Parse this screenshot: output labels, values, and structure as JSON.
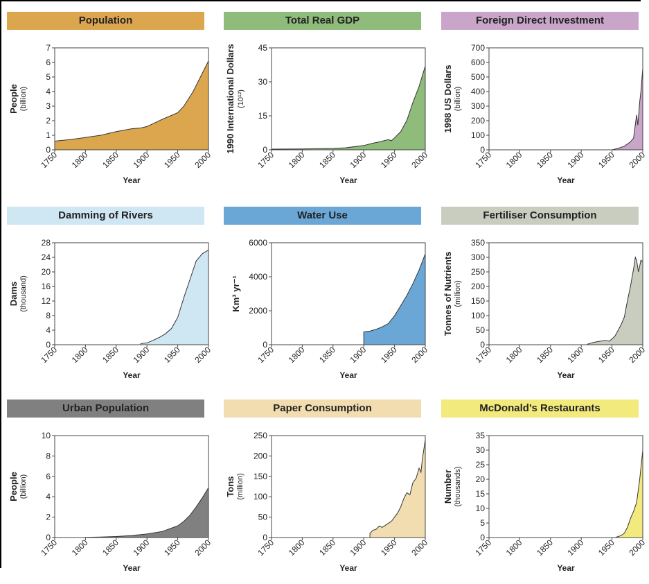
{
  "chart_data": [
    {
      "type": "area",
      "title": "Population",
      "header_color": "#dca64f",
      "fill_color": "#dca64f",
      "ylabel": "People",
      "ylabel_unit": "(billion)",
      "xlabel": "Year",
      "xlim": [
        1750,
        2000
      ],
      "ylim": [
        0,
        7
      ],
      "x_ticks": [
        "1750",
        "1800",
        "1850",
        "1900",
        "1950",
        "2000"
      ],
      "y_ticks": [
        "0",
        "1",
        "2",
        "3",
        "4",
        "5",
        "6",
        "7"
      ],
      "x": [
        1750,
        1775,
        1800,
        1825,
        1850,
        1875,
        1890,
        1900,
        1925,
        1950,
        1960,
        1975,
        2000
      ],
      "values": [
        0.6,
        0.7,
        0.85,
        1.0,
        1.25,
        1.45,
        1.5,
        1.6,
        2.1,
        2.55,
        3.0,
        4.0,
        6.1
      ]
    },
    {
      "type": "area",
      "title": "Total Real GDP",
      "header_color": "#8fbc7b",
      "fill_color": "#8fbc7b",
      "ylabel": "1990 International Dollars",
      "ylabel_sup": "(10¹²)",
      "xlabel": "Year",
      "xlim": [
        1750,
        2000
      ],
      "ylim": [
        0,
        45
      ],
      "x_ticks": [
        "1750",
        "1800",
        "1850",
        "1900",
        "1950",
        "2000"
      ],
      "y_ticks": [
        "0",
        "15",
        "30",
        "45"
      ],
      "x": [
        1750,
        1800,
        1850,
        1870,
        1900,
        1913,
        1925,
        1940,
        1945,
        1950,
        1960,
        1970,
        1980,
        1990,
        2000
      ],
      "values": [
        0.3,
        0.4,
        0.6,
        0.9,
        1.9,
        2.8,
        3.5,
        4.5,
        4.0,
        5.3,
        8.0,
        13.0,
        21.0,
        28.0,
        37.0
      ]
    },
    {
      "type": "area",
      "title": "Foreign Direct Investment",
      "header_color": "#c9a5c9",
      "fill_color": "#c9a5c9",
      "ylabel": "1998 US Dollars",
      "ylabel_unit": "(billion)",
      "xlabel": "Year",
      "xlim": [
        1750,
        2000
      ],
      "ylim": [
        0,
        700
      ],
      "x_ticks": [
        "1750",
        "1800",
        "1850",
        "1900",
        "1950",
        "2000"
      ],
      "y_ticks": [
        "0",
        "100",
        "200",
        "300",
        "400",
        "500",
        "600",
        "700"
      ],
      "x": [
        1950,
        1960,
        1970,
        1980,
        1985,
        1990,
        1992,
        1995,
        1997,
        2000
      ],
      "values": [
        0,
        10,
        25,
        55,
        80,
        240,
        170,
        330,
        400,
        560
      ]
    },
    {
      "type": "area",
      "title": "Damming of Rivers",
      "header_color": "#cfe6f3",
      "fill_color": "#cfe6f3",
      "ylabel": "Dams",
      "ylabel_unit": "(thousand)",
      "xlabel": "Year",
      "xlim": [
        1750,
        2000
      ],
      "ylim": [
        0,
        28
      ],
      "x_ticks": [
        "1750",
        "1800",
        "1850",
        "1900",
        "1950",
        "2000"
      ],
      "y_ticks": [
        "0",
        "4",
        "8",
        "12",
        "16",
        "20",
        "24",
        "28"
      ],
      "x": [
        1890,
        1900,
        1910,
        1920,
        1930,
        1940,
        1950,
        1960,
        1970,
        1980,
        1990,
        2000
      ],
      "values": [
        0.3,
        0.5,
        1.2,
        2.0,
        3.0,
        4.5,
        7.5,
        13.0,
        18.0,
        23.0,
        25.0,
        26.0
      ]
    },
    {
      "type": "area",
      "title": "Water Use",
      "header_color": "#6aa7d6",
      "fill_color": "#6aa7d6",
      "ylabel": "Km³ yr⁻¹",
      "xlabel": "Year",
      "xlim": [
        1750,
        2000
      ],
      "ylim": [
        0,
        6000
      ],
      "x_ticks": [
        "1750",
        "1800",
        "1850",
        "1900",
        "1950",
        "2000"
      ],
      "y_ticks": [
        "0",
        "2000",
        "4000",
        "6000"
      ],
      "x": [
        1900,
        1910,
        1920,
        1930,
        1940,
        1950,
        1960,
        1970,
        1980,
        1990,
        2000
      ],
      "values": [
        750,
        800,
        900,
        1050,
        1250,
        1700,
        2300,
        2900,
        3600,
        4400,
        5350
      ]
    },
    {
      "type": "area",
      "title": "Fertiliser Consumption",
      "header_color": "#c9cdbf",
      "fill_color": "#c9cdbf",
      "ylabel": "Tonnes of Nutrients",
      "ylabel_unit": "(million)",
      "xlabel": "Year",
      "xlim": [
        1750,
        2000
      ],
      "ylim": [
        0,
        350
      ],
      "x_ticks": [
        "1750",
        "1800",
        "1850",
        "1900",
        "1950",
        "2000"
      ],
      "y_ticks": [
        "0",
        "50",
        "100",
        "150",
        "200",
        "250",
        "300",
        "350"
      ],
      "x": [
        1910,
        1920,
        1930,
        1940,
        1945,
        1950,
        1955,
        1960,
        1965,
        1970,
        1975,
        1980,
        1985,
        1988,
        1990,
        1993,
        1995,
        1997,
        2000
      ],
      "values": [
        2,
        8,
        12,
        15,
        12,
        20,
        30,
        50,
        70,
        95,
        150,
        200,
        260,
        300,
        290,
        250,
        270,
        290,
        285
      ]
    },
    {
      "type": "area",
      "title": "Urban Population",
      "header_color": "#808080",
      "fill_color": "#808080",
      "ylabel": "People",
      "ylabel_unit": "(billion)",
      "xlabel": "Year",
      "xlim": [
        1750,
        2000
      ],
      "ylim": [
        0,
        10
      ],
      "x_ticks": [
        "1750",
        "1800",
        "1850",
        "1900",
        "1950",
        "2000"
      ],
      "y_ticks": [
        "0",
        "2",
        "4",
        "6",
        "8",
        "10"
      ],
      "x": [
        1800,
        1825,
        1850,
        1875,
        1900,
        1925,
        1950,
        1960,
        1970,
        1980,
        1990,
        2000
      ],
      "values": [
        0.02,
        0.05,
        0.1,
        0.2,
        0.35,
        0.6,
        1.15,
        1.6,
        2.2,
        3.0,
        3.9,
        4.9
      ]
    },
    {
      "type": "area",
      "title": "Paper Consumption",
      "header_color": "#f1ddb0",
      "fill_color": "#f1ddb0",
      "ylabel": "Tons",
      "ylabel_unit": "(million)",
      "xlabel": "Year",
      "xlim": [
        1750,
        2000
      ],
      "ylim": [
        0,
        250
      ],
      "x_ticks": [
        "1750",
        "1800",
        "1850",
        "1900",
        "1950",
        "2000"
      ],
      "y_ticks": [
        "0",
        "50",
        "100",
        "150",
        "200",
        "250"
      ],
      "x": [
        1910,
        1915,
        1920,
        1925,
        1930,
        1935,
        1940,
        1945,
        1950,
        1955,
        1960,
        1965,
        1970,
        1975,
        1980,
        1985,
        1990,
        1993,
        1995,
        2000
      ],
      "values": [
        10,
        18,
        20,
        28,
        25,
        30,
        35,
        40,
        50,
        60,
        75,
        95,
        110,
        105,
        135,
        145,
        170,
        160,
        190,
        240
      ]
    },
    {
      "type": "area",
      "title": "McDonald’s Restaurants",
      "header_color": "#f3ea7e",
      "fill_color": "#f3ea7e",
      "ylabel": "Number",
      "ylabel_unit": "(thousands)",
      "xlabel": "Year",
      "xlim": [
        1750,
        2000
      ],
      "ylim": [
        0,
        35
      ],
      "x_ticks": [
        "1750",
        "1800",
        "1850",
        "1900",
        "1950",
        "2000"
      ],
      "y_ticks": [
        "0",
        "5",
        "10",
        "15",
        "20",
        "25",
        "30",
        "35"
      ],
      "x": [
        1955,
        1965,
        1970,
        1975,
        1980,
        1985,
        1990,
        1995,
        2000
      ],
      "values": [
        0,
        0.7,
        1.5,
        3.5,
        6.5,
        9.0,
        12.0,
        20.0,
        30.0
      ]
    }
  ]
}
